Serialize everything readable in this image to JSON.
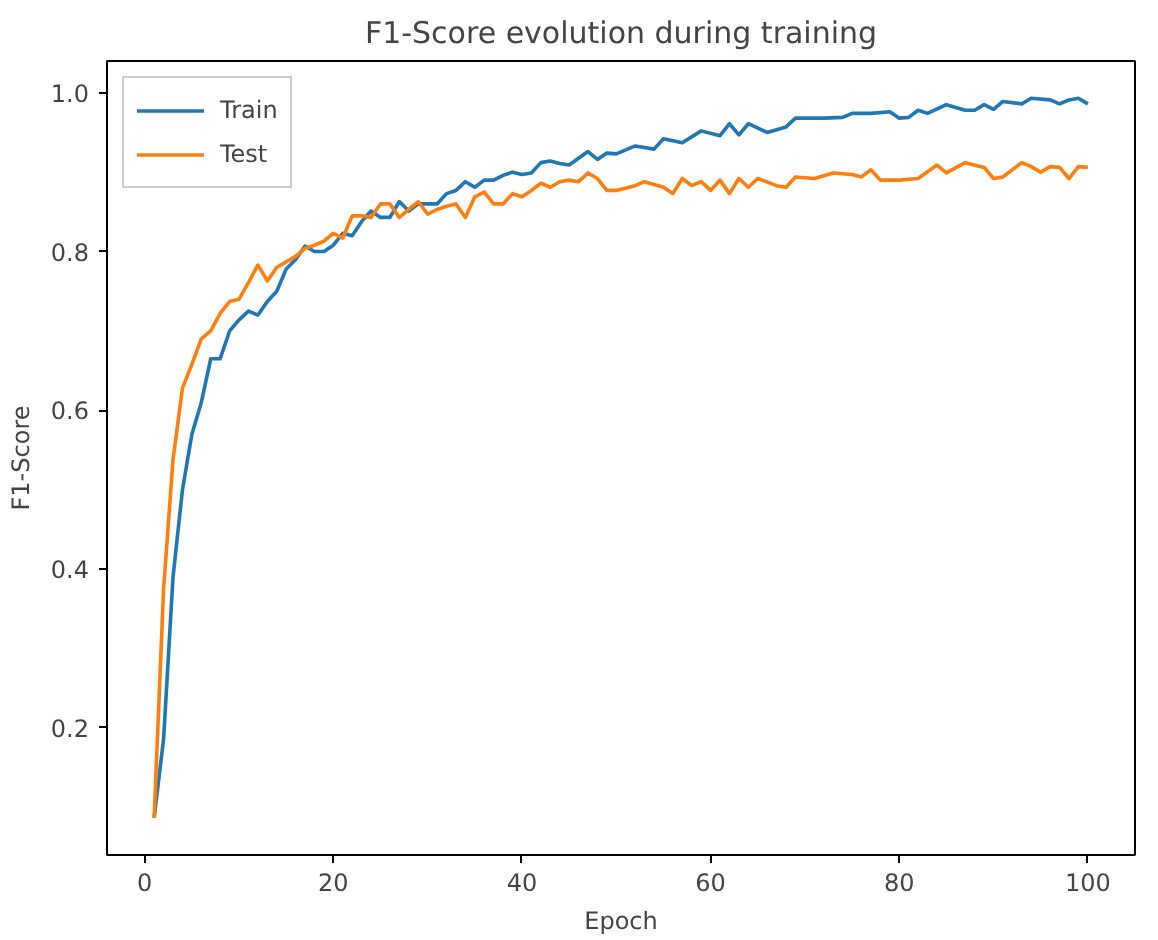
{
  "chart_data": {
    "type": "line",
    "title": "F1-Score evolution during training",
    "xlabel": "Epoch",
    "ylabel": "F1-Score",
    "xlim": [
      -4,
      105
    ],
    "ylim": [
      0.04,
      1.04
    ],
    "xticks": [
      0,
      20,
      40,
      60,
      80,
      100
    ],
    "yticks": [
      0.2,
      0.4,
      0.6,
      0.8,
      {
        "value": 1,
        "label": "1.0"
      }
    ],
    "grid": false,
    "legend": "top left",
    "line_style": "solid",
    "marker": "none",
    "series": [
      {
        "name": "Train",
        "color": "#1f77b4",
        "x": [
          1,
          2,
          3,
          4,
          5,
          6,
          7,
          8,
          9,
          10,
          11,
          12,
          13,
          14,
          15,
          16,
          17,
          18,
          19,
          20,
          21,
          22,
          23,
          24,
          25,
          26,
          27,
          28,
          29,
          30,
          31,
          32,
          33,
          34,
          35,
          36,
          37,
          38,
          39,
          40,
          41,
          42,
          43,
          44,
          45,
          47,
          48,
          49,
          50,
          52,
          54,
          55,
          57,
          59,
          61,
          62,
          63,
          64,
          66,
          68,
          69,
          72,
          74,
          75,
          77,
          79,
          80,
          81,
          82,
          83,
          85,
          87,
          88,
          89,
          90,
          91,
          93,
          94,
          96,
          97,
          98,
          99,
          100
        ],
        "values": [
          0.087,
          0.186,
          0.39,
          0.5,
          0.57,
          0.61,
          0.665,
          0.665,
          0.7,
          0.714,
          0.725,
          0.72,
          0.737,
          0.75,
          0.778,
          0.79,
          0.807,
          0.8,
          0.8,
          0.808,
          0.823,
          0.82,
          0.838,
          0.851,
          0.843,
          0.843,
          0.863,
          0.851,
          0.86,
          0.86,
          0.86,
          0.873,
          0.877,
          0.888,
          0.881,
          0.89,
          0.89,
          0.896,
          0.9,
          0.897,
          0.899,
          0.912,
          0.914,
          0.911,
          0.909,
          0.926,
          0.916,
          0.924,
          0.923,
          0.933,
          0.929,
          0.942,
          0.937,
          0.952,
          0.946,
          0.961,
          0.947,
          0.961,
          0.95,
          0.957,
          0.968,
          0.968,
          0.969,
          0.974,
          0.974,
          0.976,
          0.968,
          0.969,
          0.978,
          0.974,
          0.985,
          0.978,
          0.978,
          0.985,
          0.979,
          0.989,
          0.986,
          0.993,
          0.991,
          0.986,
          0.991,
          0.993,
          0.986
        ]
      },
      {
        "name": "Test",
        "color": "#ff7f0e",
        "x": [
          1,
          2,
          3,
          4,
          5,
          6,
          7,
          8,
          9,
          10,
          11,
          12,
          13,
          14,
          15,
          16,
          17,
          18,
          19,
          20,
          21,
          22,
          23,
          24,
          25,
          26,
          27,
          28,
          29,
          30,
          31,
          32,
          33,
          34,
          35,
          36,
          37,
          38,
          39,
          40,
          41,
          42,
          43,
          44,
          45,
          46,
          47,
          48,
          49,
          50,
          52,
          53,
          55,
          56,
          57,
          58,
          59,
          60,
          61,
          62,
          63,
          64,
          65,
          67,
          68,
          69,
          71,
          73,
          75,
          76,
          77,
          78,
          80,
          82,
          84,
          85,
          87,
          89,
          90,
          91,
          93,
          94,
          95,
          96,
          97,
          98,
          99,
          100
        ],
        "values": [
          0.087,
          0.375,
          0.538,
          0.628,
          0.658,
          0.69,
          0.7,
          0.722,
          0.737,
          0.74,
          0.761,
          0.783,
          0.763,
          0.78,
          0.787,
          0.794,
          0.804,
          0.808,
          0.813,
          0.823,
          0.817,
          0.845,
          0.845,
          0.843,
          0.86,
          0.86,
          0.843,
          0.853,
          0.863,
          0.847,
          0.853,
          0.857,
          0.86,
          0.843,
          0.869,
          0.875,
          0.86,
          0.86,
          0.873,
          0.869,
          0.877,
          0.886,
          0.881,
          0.888,
          0.89,
          0.888,
          0.899,
          0.892,
          0.877,
          0.877,
          0.883,
          0.888,
          0.881,
          0.873,
          0.892,
          0.883,
          0.888,
          0.877,
          0.89,
          0.873,
          0.892,
          0.881,
          0.892,
          0.883,
          0.881,
          0.894,
          0.892,
          0.899,
          0.897,
          0.894,
          0.903,
          0.89,
          0.89,
          0.892,
          0.909,
          0.899,
          0.912,
          0.906,
          0.892,
          0.894,
          0.912,
          0.907,
          0.9,
          0.907,
          0.906,
          0.892,
          0.907,
          0.906
        ]
      }
    ]
  }
}
